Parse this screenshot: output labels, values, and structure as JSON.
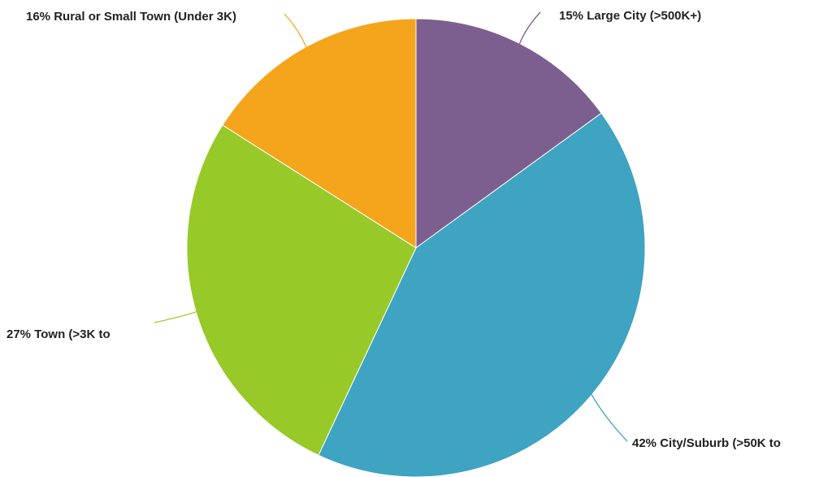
{
  "chart_data": {
    "type": "pie",
    "categories": [
      "Large City (>500K+)",
      "City/Suburb (>50K to",
      "Town (>3K to",
      "Rural or Small Town (Under 3K)"
    ],
    "values": [
      15,
      42,
      27,
      16
    ],
    "value_labels": [
      "15%",
      "42%",
      "27%",
      "16%"
    ],
    "colors": [
      "#7d5f8f",
      "#3fa3c2",
      "#97c928",
      "#f4a51c"
    ]
  }
}
